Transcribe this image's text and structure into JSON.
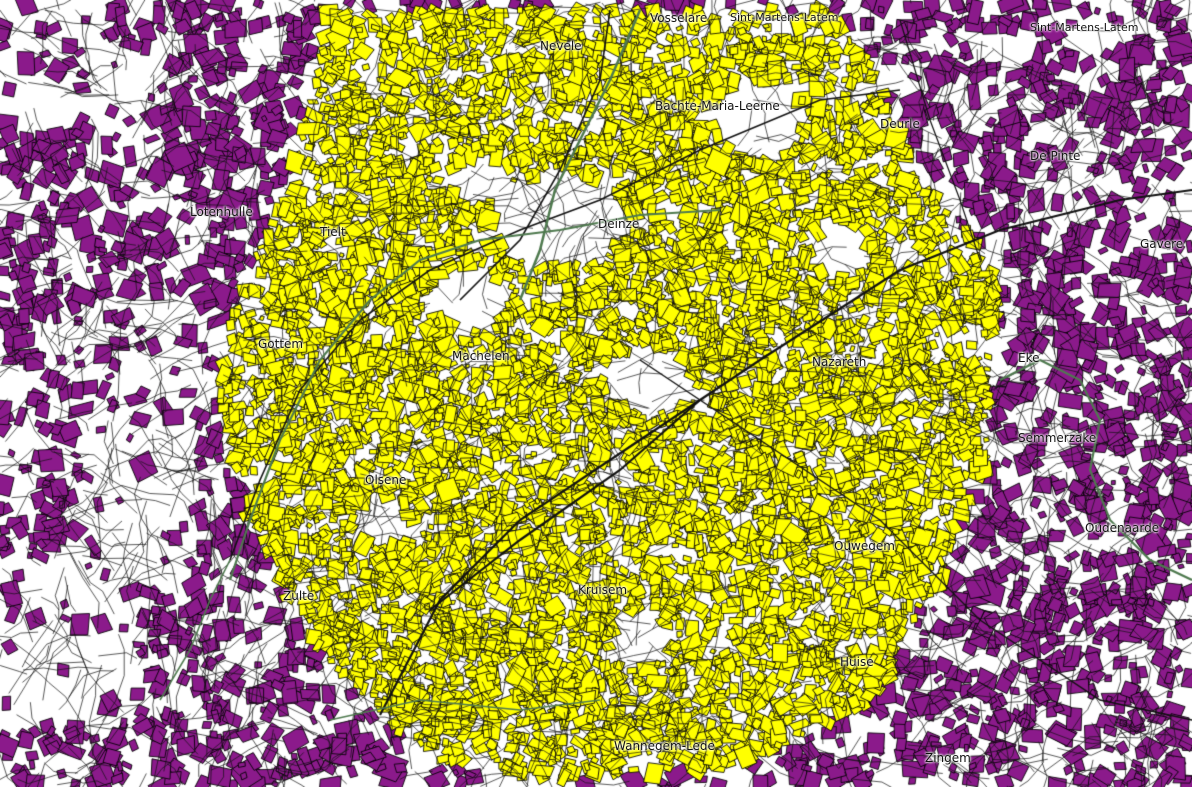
{
  "map": {
    "colors": {
      "background": "#ffffff",
      "core_parcels_fill": "#ffff00",
      "outer_parcels_fill": "#8b1a8b",
      "parcel_outline": "#000000",
      "roads": "#111111",
      "waterways": "#4f7a4f"
    },
    "layers": {
      "core_parcels": "yellow building parcels, central area",
      "outer_parcels": "purple building parcels, outer ring",
      "roads": "dense black street network",
      "waterways": "green river/canal lines"
    },
    "labels": [
      {
        "id": "vosselare",
        "text": "Vosselare"
      },
      {
        "id": "sint-martens-latem-top",
        "text": "Sint-Martens-Latem"
      },
      {
        "id": "sint-martens-latem",
        "text": "Sint-Martens-Latem"
      },
      {
        "id": "nevele",
        "text": "Nevele"
      },
      {
        "id": "bachte-maria-leerne",
        "text": "Bachte-Maria-Leerne"
      },
      {
        "id": "deurle",
        "text": "Deurle"
      },
      {
        "id": "de-pinte",
        "text": "De Pinte"
      },
      {
        "id": "deinze",
        "text": "Deinze"
      },
      {
        "id": "lotenhulle",
        "text": "Lotenhulle"
      },
      {
        "id": "tielt",
        "text": "Tielt"
      },
      {
        "id": "gottem",
        "text": "Gottem"
      },
      {
        "id": "machelen",
        "text": "Machelen"
      },
      {
        "id": "nazareth",
        "text": "Nazareth"
      },
      {
        "id": "eke",
        "text": "Eke"
      },
      {
        "id": "gavere",
        "text": "Gavere"
      },
      {
        "id": "olsene",
        "text": "Olsene"
      },
      {
        "id": "semmerzake",
        "text": "Semmerzake"
      },
      {
        "id": "zulte",
        "text": "Zulte"
      },
      {
        "id": "kruisem",
        "text": "Kruisem"
      },
      {
        "id": "oudenaarde",
        "text": "Oudenaarde"
      },
      {
        "id": "ouwegem",
        "text": "Ouwegem"
      },
      {
        "id": "wannegem-lede",
        "text": "Wannegem-Lede"
      },
      {
        "id": "huise",
        "text": "Huise"
      },
      {
        "id": "zingem",
        "text": "Zingem"
      }
    ]
  }
}
